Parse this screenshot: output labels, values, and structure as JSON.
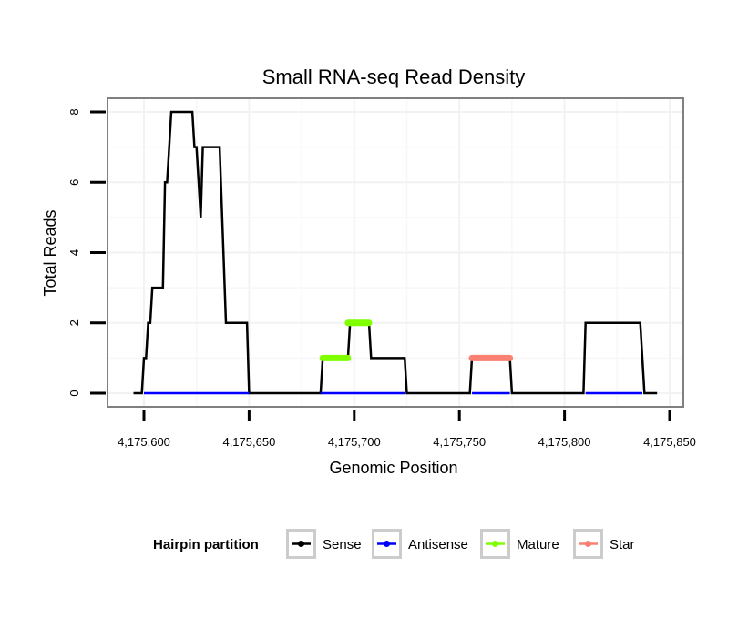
{
  "chart_data": {
    "type": "line",
    "title": "Small RNA-seq Read Density",
    "xlabel": "Genomic Position",
    "ylabel": "Total Reads",
    "xlim": [
      4175583,
      4175852
    ],
    "ylim": [
      -0.4,
      8.4
    ],
    "x_ticks": [
      4175600,
      4175650,
      4175700,
      4175750,
      4175800,
      4175850
    ],
    "x_tick_labels": [
      "4,175,600",
      "4,175,650",
      "4,175,700",
      "4,175,750",
      "4,175,800",
      "4,175,850"
    ],
    "y_ticks": [
      0,
      2,
      4,
      6,
      8
    ],
    "y_tick_labels": [
      "0",
      "2",
      "4",
      "6",
      "8"
    ],
    "grid": true,
    "legend": {
      "title": "Hairpin partition",
      "position": "bottom",
      "entries": [
        {
          "name": "Sense",
          "color": "#000000"
        },
        {
          "name": "Antisense",
          "color": "#0000ff"
        },
        {
          "name": "Mature",
          "color": "#7fff00"
        },
        {
          "name": "Star",
          "color": "#fa8072"
        }
      ]
    },
    "series": [
      {
        "name": "Sense",
        "color": "#000000",
        "points": [
          [
            4175595,
            0
          ],
          [
            4175599,
            0
          ],
          [
            4175600,
            1
          ],
          [
            4175601,
            1
          ],
          [
            4175602,
            2
          ],
          [
            4175603,
            2
          ],
          [
            4175604,
            3
          ],
          [
            4175609,
            3
          ],
          [
            4175610,
            6
          ],
          [
            4175611,
            6
          ],
          [
            4175613,
            8
          ],
          [
            4175623,
            8
          ],
          [
            4175624,
            7
          ],
          [
            4175625,
            7
          ],
          [
            4175627,
            5
          ],
          [
            4175628,
            7
          ],
          [
            4175636,
            7
          ],
          [
            4175639,
            2
          ],
          [
            4175649,
            2
          ],
          [
            4175650,
            0
          ],
          [
            4175684,
            0
          ],
          [
            4175685,
            1
          ],
          [
            4175697,
            1
          ],
          [
            4175698,
            2
          ],
          [
            4175707,
            2
          ],
          [
            4175708,
            1
          ],
          [
            4175724,
            1
          ],
          [
            4175725,
            0
          ],
          [
            4175755,
            0
          ],
          [
            4175756,
            1
          ],
          [
            4175774,
            1
          ],
          [
            4175775,
            0
          ],
          [
            4175809,
            0
          ],
          [
            4175810,
            2
          ],
          [
            4175836,
            2
          ],
          [
            4175838,
            0
          ],
          [
            4175844,
            0
          ]
        ]
      },
      {
        "name": "Antisense",
        "color": "#0000ff",
        "points": [
          [
            4175600,
            0
          ],
          [
            4175650,
            0
          ],
          [
            4175684,
            0
          ],
          [
            4175724,
            0
          ],
          [
            4175756,
            0
          ],
          [
            4175774,
            0
          ],
          [
            4175810,
            0
          ],
          [
            4175837,
            0
          ]
        ],
        "segments": [
          [
            4175600,
            4175650
          ],
          [
            4175684,
            4175724
          ],
          [
            4175756,
            4175774
          ],
          [
            4175810,
            4175837
          ]
        ]
      },
      {
        "name": "Mature",
        "color": "#7fff00",
        "segments": [
          {
            "x": [
              4175685,
              4175697
            ],
            "y": 1
          },
          {
            "x": [
              4175697,
              4175707
            ],
            "y": 2
          }
        ]
      },
      {
        "name": "Star",
        "color": "#fa8072",
        "segments": [
          {
            "x": [
              4175756,
              4175774
            ],
            "y": 1
          }
        ]
      }
    ]
  }
}
